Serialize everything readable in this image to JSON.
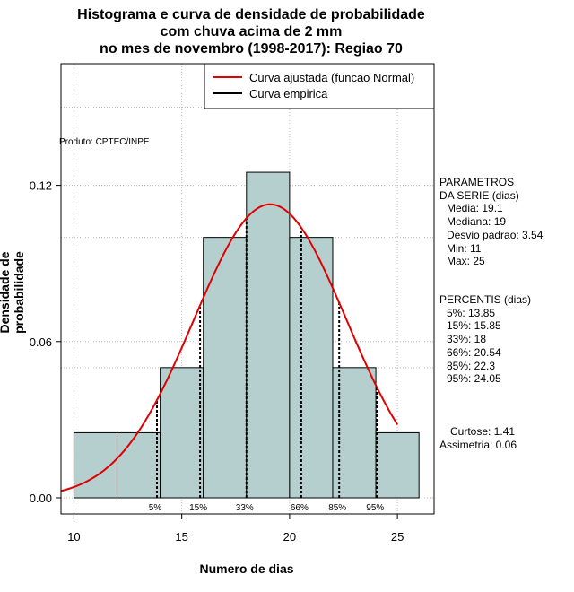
{
  "title": {
    "line1": "Histograma e curva de densidade de probabilidade",
    "line2": "com chuva acima de 2 mm",
    "line3": "no mes de novembro (1998-2017): Regiao 70"
  },
  "credit": "Produto: CPTEC/INPE",
  "chart_data": {
    "type": "bar",
    "title": "Histograma e curva de densidade de probabilidade com chuva acima de 2 mm no mes de novembro (1998-2017): Regiao 70",
    "xlabel": "Numero de dias",
    "ylabel": "Densidade de probabilidade",
    "xlim": [
      9.4,
      26.7
    ],
    "ylim": [
      0,
      0.1667
    ],
    "x_ticks": [
      10,
      15,
      20,
      25
    ],
    "y_ticks": [
      0.0,
      0.06,
      0.12
    ],
    "y_tick_labels": [
      "0.00",
      "0.06",
      "0.12"
    ],
    "grid": true,
    "histogram": {
      "bin_edges": [
        10,
        12,
        14,
        16,
        18,
        20,
        22,
        24,
        26
      ],
      "densities": [
        0.025,
        0.025,
        0.05,
        0.1,
        0.125,
        0.1,
        0.05,
        0.025
      ],
      "color": "#b5cece"
    },
    "series": [
      {
        "name": "Curva ajustada (funcao Normal)",
        "type": "line",
        "color": "#e00000",
        "function": "normal_pdf",
        "mean": 19.1,
        "sd": 3.54,
        "x_range": [
          9.4,
          25
        ]
      },
      {
        "name": "Curva empirica",
        "type": "line",
        "color": "#000000"
      }
    ],
    "legend_position": "top-right",
    "percentiles": [
      {
        "label": "5%",
        "x": 13.85
      },
      {
        "label": "15%",
        "x": 15.85
      },
      {
        "label": "33%",
        "x": 18
      },
      {
        "label": "66%",
        "x": 20.54
      },
      {
        "label": "85%",
        "x": 22.3
      },
      {
        "label": "95%",
        "x": 24.05
      }
    ]
  },
  "params": {
    "heading1": "PARAMETROS",
    "heading2": "DA SERIE (dias)",
    "media": "Media: 19.1",
    "mediana": "Mediana: 19",
    "desvio": "Desvio padrao: 3.54",
    "min": "Min: 11",
    "max": "Max: 25"
  },
  "percentis": {
    "heading": "PERCENTIS (dias)",
    "p5": "5%: 13.85",
    "p15": "15%: 15.85",
    "p33": "33%: 18",
    "p66": "66%: 20.54",
    "p85": "85%: 22.3",
    "p95": "95%: 24.05"
  },
  "shape": {
    "curtose": "Curtose: 1.41",
    "assimetria": "Assimetria: 0.06"
  }
}
